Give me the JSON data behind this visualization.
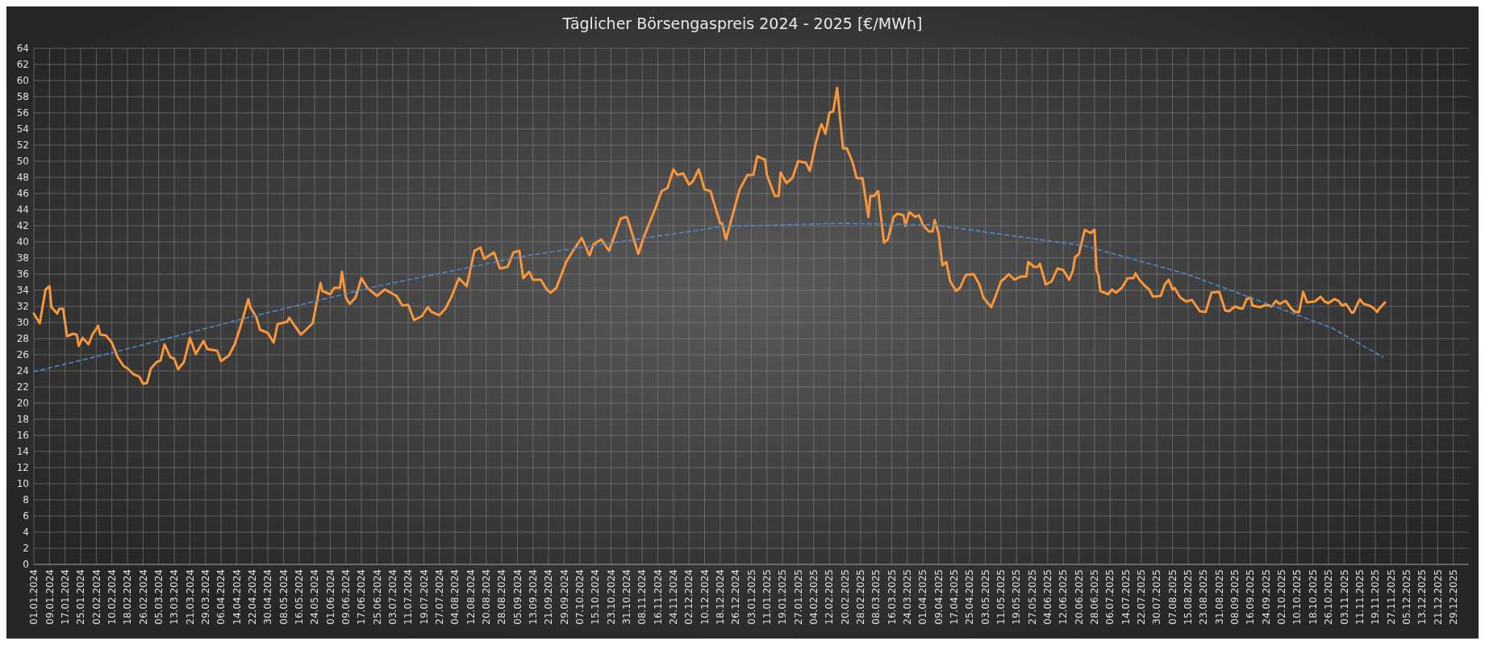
{
  "chart_data": {
    "type": "line",
    "title": "Täglicher Börsengaspreis 2024 - 2025 [€/MWh]",
    "grid": true,
    "xlim": [
      "2024-01-01",
      "2026-01-06"
    ],
    "ylim": [
      0,
      64
    ],
    "yticks": [
      0,
      2,
      4,
      6,
      8,
      10,
      12,
      14,
      16,
      18,
      20,
      22,
      24,
      26,
      28,
      30,
      32,
      34,
      36,
      38,
      40,
      42,
      44,
      46,
      48,
      50,
      52,
      54,
      56,
      58,
      60,
      62,
      64
    ],
    "xticks": [
      {
        "value": "2024-01-01",
        "label": "01.01.2024"
      },
      {
        "value": "2024-01-09",
        "label": "09.01.2024"
      },
      {
        "value": "2024-01-17",
        "label": "17.01.2024"
      },
      {
        "value": "2024-01-25",
        "label": "25.01.2024"
      },
      {
        "value": "2024-02-02",
        "label": "02.02.2024"
      },
      {
        "value": "2024-02-10",
        "label": "10.02.2024"
      },
      {
        "value": "2024-02-18",
        "label": "18.02.2024"
      },
      {
        "value": "2024-02-26",
        "label": "26.02.2024"
      },
      {
        "value": "2024-03-05",
        "label": "05.03.2024"
      },
      {
        "value": "2024-03-13",
        "label": "13.03.2024"
      },
      {
        "value": "2024-03-21",
        "label": "21.03.2024"
      },
      {
        "value": "2024-03-29",
        "label": "29.03.2024"
      },
      {
        "value": "2024-04-06",
        "label": "06.04.2024"
      },
      {
        "value": "2024-04-14",
        "label": "14.04.2024"
      },
      {
        "value": "2024-04-22",
        "label": "22.04.2024"
      },
      {
        "value": "2024-04-30",
        "label": "30.04.2024"
      },
      {
        "value": "2024-05-08",
        "label": "08.05.2024"
      },
      {
        "value": "2024-05-16",
        "label": "16.05.2024"
      },
      {
        "value": "2024-05-24",
        "label": "24.05.2024"
      },
      {
        "value": "2024-06-01",
        "label": "01.06.2024"
      },
      {
        "value": "2024-06-09",
        "label": "09.06.2024"
      },
      {
        "value": "2024-06-17",
        "label": "17.06.2024"
      },
      {
        "value": "2024-06-25",
        "label": "25.06.2024"
      },
      {
        "value": "2024-07-03",
        "label": "03.07.2024"
      },
      {
        "value": "2024-07-11",
        "label": "11.07.2024"
      },
      {
        "value": "2024-07-19",
        "label": "19.07.2024"
      },
      {
        "value": "2024-07-27",
        "label": "27.07.2024"
      },
      {
        "value": "2024-08-04",
        "label": "04.08.2024"
      },
      {
        "value": "2024-08-12",
        "label": "12.08.2024"
      },
      {
        "value": "2024-08-20",
        "label": "20.08.2024"
      },
      {
        "value": "2024-08-28",
        "label": "28.08.2024"
      },
      {
        "value": "2024-09-05",
        "label": "05.09.2024"
      },
      {
        "value": "2024-09-13",
        "label": "13.09.2024"
      },
      {
        "value": "2024-09-21",
        "label": "21.09.2024"
      },
      {
        "value": "2024-09-29",
        "label": "29.09.2024"
      },
      {
        "value": "2024-10-07",
        "label": "07.10.2024"
      },
      {
        "value": "2024-10-15",
        "label": "15.10.2024"
      },
      {
        "value": "2024-10-23",
        "label": "23.10.2024"
      },
      {
        "value": "2024-10-31",
        "label": "31.10.2024"
      },
      {
        "value": "2024-11-08",
        "label": "08.11.2024"
      },
      {
        "value": "2024-11-16",
        "label": "16.11.2024"
      },
      {
        "value": "2024-11-24",
        "label": "24.11.2024"
      },
      {
        "value": "2024-12-02",
        "label": "02.12.2024"
      },
      {
        "value": "2024-12-10",
        "label": "10.12.2024"
      },
      {
        "value": "2024-12-18",
        "label": "18.12.2024"
      },
      {
        "value": "2024-12-26",
        "label": "26.12.2024"
      },
      {
        "value": "2025-01-03",
        "label": "03.01.2025"
      },
      {
        "value": "2025-01-11",
        "label": "11.01.2025"
      },
      {
        "value": "2025-01-19",
        "label": "19.01.2025"
      },
      {
        "value": "2025-01-27",
        "label": "27.01.2025"
      },
      {
        "value": "2025-02-04",
        "label": "04.02.2025"
      },
      {
        "value": "2025-02-12",
        "label": "12.02.2025"
      },
      {
        "value": "2025-02-20",
        "label": "20.02.2025"
      },
      {
        "value": "2025-02-28",
        "label": "28.02.2025"
      },
      {
        "value": "2025-03-08",
        "label": "08.03.2025"
      },
      {
        "value": "2025-03-16",
        "label": "16.03.2025"
      },
      {
        "value": "2025-03-24",
        "label": "24.03.2025"
      },
      {
        "value": "2025-04-01",
        "label": "01.04.2025"
      },
      {
        "value": "2025-04-09",
        "label": "09.04.2025"
      },
      {
        "value": "2025-04-17",
        "label": "17.04.2025"
      },
      {
        "value": "2025-04-25",
        "label": "25.04.2025"
      },
      {
        "value": "2025-05-03",
        "label": "03.05.2025"
      },
      {
        "value": "2025-05-11",
        "label": "11.05.2025"
      },
      {
        "value": "2025-05-19",
        "label": "19.05.2025"
      },
      {
        "value": "2025-05-27",
        "label": "27.05.2025"
      },
      {
        "value": "2025-06-04",
        "label": "04.06.2025"
      },
      {
        "value": "2025-06-12",
        "label": "12.06.2025"
      },
      {
        "value": "2025-06-20",
        "label": "20.06.2025"
      },
      {
        "value": "2025-06-28",
        "label": "28.06.2025"
      },
      {
        "value": "2025-07-06",
        "label": "06.07.2025"
      },
      {
        "value": "2025-07-14",
        "label": "14.07.2025"
      },
      {
        "value": "2025-07-22",
        "label": "22.07.2025"
      },
      {
        "value": "2025-07-30",
        "label": "30.07.2025"
      },
      {
        "value": "2025-08-07",
        "label": "07.08.2025"
      },
      {
        "value": "2025-08-15",
        "label": "15.08.2025"
      },
      {
        "value": "2025-08-23",
        "label": "23.08.2025"
      },
      {
        "value": "2025-08-31",
        "label": "31.08.2025"
      },
      {
        "value": "2025-09-08",
        "label": "08.09.2025"
      },
      {
        "value": "2025-09-16",
        "label": "16.09.2025"
      },
      {
        "value": "2025-09-24",
        "label": "24.09.2025"
      },
      {
        "value": "2025-10-02",
        "label": "02.10.2025"
      },
      {
        "value": "2025-10-10",
        "label": "10.10.2025"
      },
      {
        "value": "2025-10-18",
        "label": "18.10.2025"
      },
      {
        "value": "2025-10-26",
        "label": "26.10.2025"
      },
      {
        "value": "2025-11-03",
        "label": "03.11.2025"
      },
      {
        "value": "2025-11-11",
        "label": "11.11.2025"
      },
      {
        "value": "2025-11-19",
        "label": "19.11.2025"
      },
      {
        "value": "2025-11-27",
        "label": "27.11.2025"
      },
      {
        "value": "2025-12-05",
        "label": "05.12.2025"
      },
      {
        "value": "2025-12-13",
        "label": "13.12.2025"
      },
      {
        "value": "2025-12-21",
        "label": "21.12.2025"
      },
      {
        "value": "2025-12-29",
        "label": "29.12.2025"
      }
    ],
    "series": [
      {
        "color": "#f7963a",
        "line_style": "solid",
        "x": [
          "2024-01-01",
          "2024-01-04",
          "2024-01-07",
          "2024-01-09",
          "2024-01-10",
          "2024-01-13",
          "2024-01-14",
          "2024-01-16",
          "2024-01-18",
          "2024-01-21",
          "2024-01-23",
          "2024-01-24",
          "2024-01-26",
          "2024-01-29",
          "2024-01-31",
          "2024-02-03",
          "2024-02-04",
          "2024-02-07",
          "2024-02-10",
          "2024-02-13",
          "2024-02-16",
          "2024-02-18",
          "2024-02-21",
          "2024-02-24",
          "2024-02-26",
          "2024-02-28",
          "2024-03-01",
          "2024-03-04",
          "2024-03-06",
          "2024-03-08",
          "2024-03-11",
          "2024-03-13",
          "2024-03-15",
          "2024-03-18",
          "2024-03-21",
          "2024-03-24",
          "2024-03-28",
          "2024-03-30",
          "2024-04-04",
          "2024-04-06",
          "2024-04-10",
          "2024-04-13",
          "2024-04-16",
          "2024-04-20",
          "2024-04-21",
          "2024-04-24",
          "2024-04-26",
          "2024-04-30",
          "2024-05-03",
          "2024-05-05",
          "2024-05-10",
          "2024-05-11",
          "2024-05-14",
          "2024-05-17",
          "2024-05-23",
          "2024-05-27",
          "2024-05-28",
          "2024-06-01",
          "2024-06-03",
          "2024-06-06",
          "2024-06-07",
          "2024-06-09",
          "2024-06-11",
          "2024-06-14",
          "2024-06-17",
          "2024-06-20",
          "2024-06-25",
          "2024-06-29",
          "2024-07-05",
          "2024-07-08",
          "2024-07-11",
          "2024-07-14",
          "2024-07-18",
          "2024-07-21",
          "2024-07-23",
          "2024-07-27",
          "2024-07-30",
          "2024-08-02",
          "2024-08-06",
          "2024-08-10",
          "2024-08-14",
          "2024-08-17",
          "2024-08-19",
          "2024-08-24",
          "2024-08-27",
          "2024-08-31",
          "2024-09-03",
          "2024-09-06",
          "2024-09-08",
          "2024-09-11",
          "2024-09-13",
          "2024-09-17",
          "2024-09-20",
          "2024-09-22",
          "2024-09-25",
          "2024-09-30",
          "2024-10-03",
          "2024-10-08",
          "2024-10-12",
          "2024-10-14",
          "2024-10-18",
          "2024-10-22",
          "2024-10-28",
          "2024-10-31",
          "2024-11-01",
          "2024-11-06",
          "2024-11-09",
          "2024-11-12",
          "2024-11-15",
          "2024-11-18",
          "2024-11-21",
          "2024-11-24",
          "2024-11-26",
          "2024-11-29",
          "2024-12-02",
          "2024-12-04",
          "2024-12-07",
          "2024-12-10",
          "2024-12-13",
          "2024-12-18",
          "2024-12-19",
          "2024-12-21",
          "2024-12-25",
          "2024-12-28",
          "2025-01-01",
          "2025-01-04",
          "2025-01-06",
          "2025-01-10",
          "2025-01-11",
          "2025-01-15",
          "2025-01-17",
          "2025-01-18",
          "2025-01-21",
          "2025-01-24",
          "2025-01-27",
          "2025-01-31",
          "2025-02-02",
          "2025-02-05",
          "2025-02-07",
          "2025-02-08",
          "2025-02-10",
          "2025-02-12",
          "2025-02-14",
          "2025-02-16",
          "2025-02-19",
          "2025-02-21",
          "2025-02-24",
          "2025-02-26",
          "2025-03-01",
          "2025-03-04",
          "2025-03-05",
          "2025-03-07",
          "2025-03-09",
          "2025-03-12",
          "2025-03-14",
          "2025-03-17",
          "2025-03-19",
          "2025-03-22",
          "2025-03-23",
          "2025-03-25",
          "2025-03-28",
          "2025-03-30",
          "2025-04-01",
          "2025-04-04",
          "2025-04-06",
          "2025-04-07",
          "2025-04-09",
          "2025-04-11",
          "2025-04-13",
          "2025-04-15",
          "2025-04-18",
          "2025-04-20",
          "2025-04-23",
          "2025-04-27",
          "2025-04-30",
          "2025-05-02",
          "2025-05-06",
          "2025-05-08",
          "2025-05-11",
          "2025-05-13",
          "2025-05-15",
          "2025-05-18",
          "2025-05-21",
          "2025-05-24",
          "2025-05-25",
          "2025-05-28",
          "2025-05-30",
          "2025-05-31",
          "2025-06-03",
          "2025-06-06",
          "2025-06-09",
          "2025-06-12",
          "2025-06-15",
          "2025-06-17",
          "2025-06-18",
          "2025-06-20",
          "2025-06-21",
          "2025-06-23",
          "2025-06-26",
          "2025-06-28",
          "2025-06-29",
          "2025-06-30",
          "2025-07-01",
          "2025-07-03",
          "2025-07-05",
          "2025-07-07",
          "2025-07-09",
          "2025-07-12",
          "2025-07-15",
          "2025-07-18",
          "2025-07-19",
          "2025-07-21",
          "2025-07-24",
          "2025-07-26",
          "2025-07-28",
          "2025-08-01",
          "2025-08-03",
          "2025-08-05",
          "2025-08-07",
          "2025-08-08",
          "2025-08-11",
          "2025-08-14",
          "2025-08-17",
          "2025-08-21",
          "2025-08-24",
          "2025-08-27",
          "2025-08-31",
          "2025-09-03",
          "2025-09-05",
          "2025-09-08",
          "2025-09-10",
          "2025-09-12",
          "2025-09-14",
          "2025-09-16",
          "2025-09-17",
          "2025-09-21",
          "2025-09-24",
          "2025-09-27",
          "2025-09-29",
          "2025-10-01",
          "2025-10-04",
          "2025-10-07",
          "2025-10-09",
          "2025-10-11",
          "2025-10-13",
          "2025-10-15",
          "2025-10-19",
          "2025-10-22",
          "2025-10-24",
          "2025-10-26",
          "2025-10-29",
          "2025-10-31",
          "2025-11-02",
          "2025-11-04",
          "2025-11-07",
          "2025-11-08",
          "2025-11-11",
          "2025-11-13",
          "2025-11-16",
          "2025-11-18",
          "2025-11-20",
          "2025-11-21",
          "2025-11-24"
        ],
        "values": [
          31.1,
          29.9,
          34.1,
          34.5,
          31.9,
          31.1,
          31.7,
          31.7,
          28.3,
          28.6,
          28.5,
          27.1,
          28.1,
          27.3,
          28.5,
          29.6,
          28.5,
          28.4,
          27.5,
          25.7,
          24.6,
          24.3,
          23.6,
          23.3,
          22.4,
          22.5,
          24.3,
          25.1,
          25.3,
          27.3,
          25.7,
          25.5,
          24.2,
          25.1,
          28.1,
          26.1,
          27.7,
          26.7,
          26.5,
          25.2,
          25.9,
          27.3,
          29.5,
          32.9,
          31.9,
          30.7,
          29.1,
          28.7,
          27.5,
          29.8,
          30.1,
          30.6,
          29.5,
          28.5,
          29.9,
          34.9,
          33.9,
          33.5,
          34.3,
          34.3,
          36.3,
          33.1,
          32.3,
          33.1,
          35.5,
          34.3,
          33.3,
          34.1,
          33.3,
          32.1,
          32.2,
          30.3,
          30.8,
          31.9,
          31.3,
          30.9,
          31.7,
          33.1,
          35.5,
          34.5,
          38.9,
          39.3,
          37.9,
          38.7,
          36.7,
          36.9,
          38.7,
          38.9,
          35.5,
          36.3,
          35.3,
          35.3,
          34.1,
          33.7,
          34.3,
          37.5,
          38.7,
          40.5,
          38.3,
          39.7,
          40.3,
          38.9,
          42.9,
          43.1,
          42.5,
          38.5,
          40.7,
          42.5,
          44.3,
          46.3,
          46.7,
          49.0,
          48.3,
          48.5,
          47.1,
          47.5,
          49.0,
          46.5,
          46.3,
          42.3,
          42.3,
          40.3,
          43.9,
          46.5,
          48.3,
          48.3,
          50.6,
          50.2,
          48.3,
          45.7,
          45.7,
          48.6,
          47.3,
          47.9,
          50.0,
          49.8,
          48.8,
          52.2,
          54.0,
          54.6,
          53.4,
          56.0,
          56.2,
          59.1,
          51.6,
          51.6,
          49.8,
          47.9,
          47.9,
          43.1,
          45.7,
          45.7,
          46.3,
          39.9,
          40.3,
          43.1,
          43.5,
          43.3,
          42.0,
          43.7,
          43.1,
          43.3,
          42.1,
          41.3,
          41.3,
          42.7,
          41.1,
          37.1,
          37.5,
          35.1,
          33.9,
          34.3,
          35.9,
          36.0,
          34.7,
          33.1,
          31.9,
          33.1,
          35.1,
          35.5,
          36.0,
          35.3,
          35.7,
          35.7,
          37.5,
          36.9,
          36.9,
          37.3,
          34.7,
          35.1,
          36.7,
          36.5,
          35.3,
          36.5,
          38.1,
          38.5,
          39.5,
          41.5,
          41.1,
          41.5,
          36.5,
          35.9,
          33.9,
          33.7,
          33.5,
          34.1,
          33.7,
          34.3,
          35.5,
          35.5,
          36.1,
          35.3,
          34.5,
          34.1,
          33.2,
          33.3,
          34.7,
          35.3,
          34.1,
          34.3,
          33.1,
          32.6,
          32.8,
          31.4,
          31.3,
          33.7,
          33.8,
          31.5,
          31.4,
          32.0,
          31.8,
          31.7,
          32.9,
          33.1,
          32.1,
          31.9,
          32.2,
          32.0,
          32.7,
          32.3,
          32.7,
          31.7,
          31.3,
          31.3,
          33.8,
          32.5,
          32.6,
          33.2,
          32.6,
          32.4,
          32.9,
          32.7,
          32.1,
          32.3,
          31.2,
          31.3,
          32.9,
          32.3,
          32.1,
          31.8,
          31.3,
          31.7,
          32.5
        ]
      },
      {
        "color": "#4f86c6",
        "line_style": "dashed",
        "x": [
          "2024-01-01",
          "2024-02-11",
          "2024-04-21",
          "2024-06-25",
          "2024-09-10",
          "2024-12-19",
          "2025-02-16",
          "2025-04-07",
          "2025-06-23",
          "2025-08-13",
          "2025-09-25",
          "2025-10-28",
          "2025-11-23"
        ],
        "values": [
          23.9,
          26.3,
          30.7,
          34.5,
          38.3,
          41.9,
          42.3,
          42.1,
          39.5,
          36.1,
          32.3,
          29.3,
          25.7
        ]
      }
    ]
  }
}
